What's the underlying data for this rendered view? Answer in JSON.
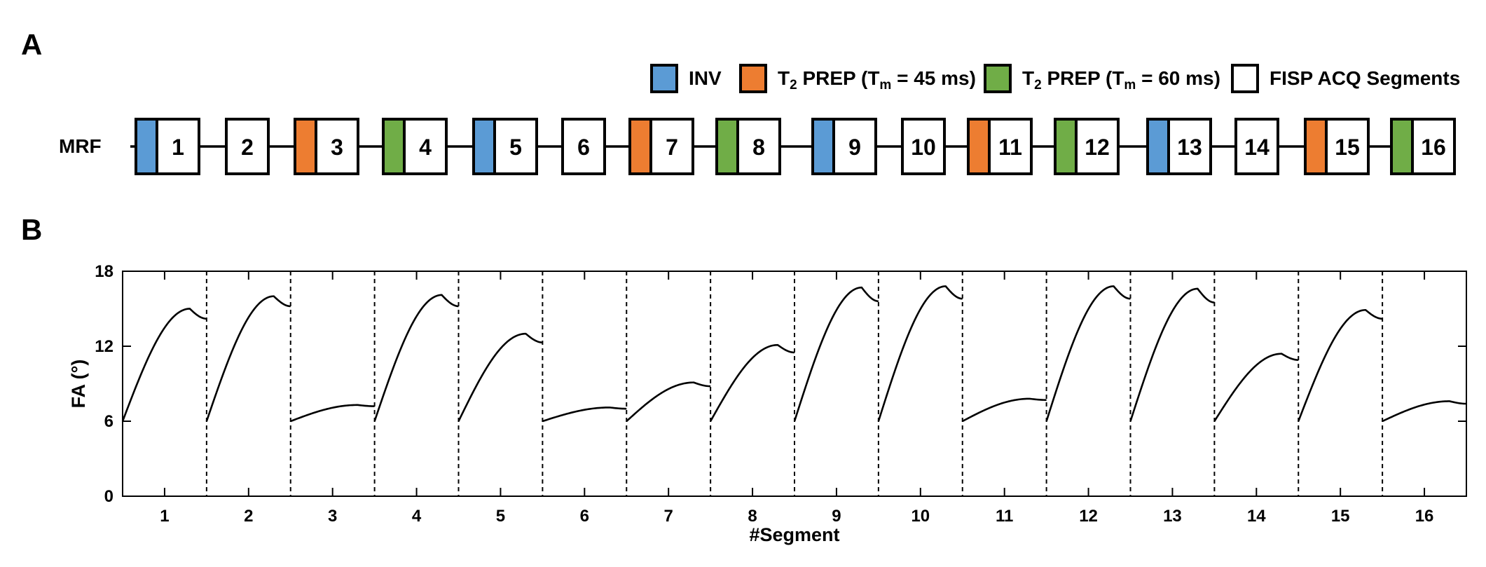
{
  "panel_a": {
    "label": "A",
    "row_label": "MRF",
    "legend": [
      {
        "key": "inv",
        "color": "#5b9bd5",
        "text": "INV"
      },
      {
        "key": "t2_45",
        "color": "#ed7d31",
        "text_prefix": "T",
        "text_sub": "2",
        "text_mid": " PREP (T",
        "text_sub2": "m",
        "text_suffix": " = 45 ms)"
      },
      {
        "key": "t2_60",
        "color": "#70ad47",
        "text_prefix": "T",
        "text_sub": "2",
        "text_mid": " PREP (T",
        "text_sub2": "m",
        "text_suffix": " = 60 ms)"
      },
      {
        "key": "acq",
        "color": "#ffffff",
        "text": "FISP ACQ Segments"
      }
    ],
    "segments": [
      {
        "num": "1",
        "prep": "inv"
      },
      {
        "num": "2",
        "prep": "none"
      },
      {
        "num": "3",
        "prep": "t2_45"
      },
      {
        "num": "4",
        "prep": "t2_60"
      },
      {
        "num": "5",
        "prep": "inv"
      },
      {
        "num": "6",
        "prep": "none"
      },
      {
        "num": "7",
        "prep": "t2_45"
      },
      {
        "num": "8",
        "prep": "t2_60"
      },
      {
        "num": "9",
        "prep": "inv"
      },
      {
        "num": "10",
        "prep": "none"
      },
      {
        "num": "11",
        "prep": "t2_45"
      },
      {
        "num": "12",
        "prep": "t2_60"
      },
      {
        "num": "13",
        "prep": "inv"
      },
      {
        "num": "14",
        "prep": "none"
      },
      {
        "num": "15",
        "prep": "t2_45"
      },
      {
        "num": "16",
        "prep": "t2_60"
      }
    ]
  },
  "panel_b": {
    "label": "B"
  },
  "chart_data": {
    "type": "line",
    "title": "",
    "xlabel": "#Segment",
    "ylabel": "FA (°)",
    "ylim": [
      0,
      18
    ],
    "xlim": [
      0.5,
      16.5
    ],
    "yticks": [
      0,
      6,
      12,
      18
    ],
    "xticks": [
      "1",
      "2",
      "3",
      "4",
      "5",
      "6",
      "7",
      "8",
      "9",
      "10",
      "11",
      "12",
      "13",
      "14",
      "15",
      "16"
    ],
    "segment_dividers": "dashed, between each segment",
    "grid": false,
    "note_curve": "each segment is a smooth sinusoid-like curve starting at 6° and peaking near 80% of the segment",
    "segments": [
      {
        "segment": 1,
        "start": 6,
        "peak": 15.0,
        "end": 14.2
      },
      {
        "segment": 2,
        "start": 6,
        "peak": 16.0,
        "end": 15.2
      },
      {
        "segment": 3,
        "start": 6,
        "peak": 7.3,
        "end": 7.2
      },
      {
        "segment": 4,
        "start": 6,
        "peak": 16.1,
        "end": 15.2
      },
      {
        "segment": 5,
        "start": 6,
        "peak": 13.0,
        "end": 12.3
      },
      {
        "segment": 6,
        "start": 6,
        "peak": 7.1,
        "end": 7.0
      },
      {
        "segment": 7,
        "start": 6,
        "peak": 9.1,
        "end": 8.8
      },
      {
        "segment": 8,
        "start": 6,
        "peak": 12.1,
        "end": 11.5
      },
      {
        "segment": 9,
        "start": 6,
        "peak": 16.7,
        "end": 15.6
      },
      {
        "segment": 10,
        "start": 6,
        "peak": 16.8,
        "end": 15.8
      },
      {
        "segment": 11,
        "start": 6,
        "peak": 7.8,
        "end": 7.7
      },
      {
        "segment": 12,
        "start": 6,
        "peak": 16.8,
        "end": 15.8
      },
      {
        "segment": 13,
        "start": 6,
        "peak": 16.6,
        "end": 15.5
      },
      {
        "segment": 14,
        "start": 6,
        "peak": 11.4,
        "end": 10.9
      },
      {
        "segment": 15,
        "start": 6,
        "peak": 14.9,
        "end": 14.2
      },
      {
        "segment": 16,
        "start": 6,
        "peak": 7.6,
        "end": 7.4
      }
    ]
  }
}
